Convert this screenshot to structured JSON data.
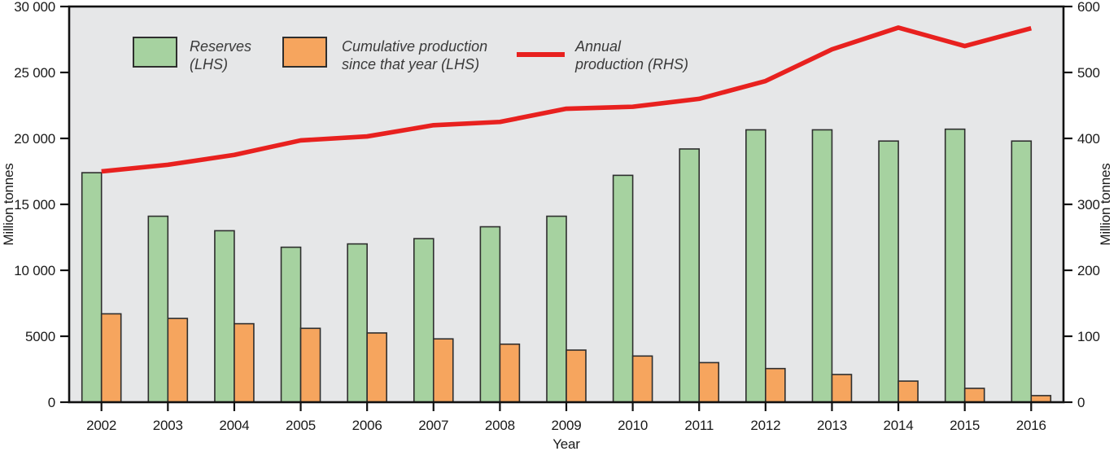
{
  "chart_data": {
    "type": "bar+line",
    "x_label": "Year",
    "y_left_label": "Million tonnes",
    "y_right_label": "Million tonnes",
    "y_left_range": [
      0,
      30000
    ],
    "y_left_tick_values": [
      0,
      5000,
      10000,
      15000,
      20000,
      25000,
      30000
    ],
    "y_left_ticks": [
      "0",
      "5000",
      "10 000",
      "15 000",
      "20 000",
      "25 000",
      "30 000"
    ],
    "y_right_range": [
      0,
      600
    ],
    "y_right_tick_values": [
      0,
      100,
      200,
      300,
      400,
      500,
      600
    ],
    "y_right_ticks": [
      "0",
      "100",
      "200",
      "300",
      "400",
      "500",
      "600"
    ],
    "categories": [
      "2002",
      "2003",
      "2004",
      "2005",
      "2006",
      "2007",
      "2008",
      "2009",
      "2010",
      "2011",
      "2012",
      "2013",
      "2014",
      "2015",
      "2016"
    ],
    "series": [
      {
        "name": "Reserves (LHS)",
        "type": "bar",
        "axis": "left",
        "values": [
          17400,
          14100,
          13000,
          11750,
          12000,
          12400,
          13300,
          14100,
          17200,
          19200,
          20650,
          20650,
          19800,
          20700,
          19800
        ]
      },
      {
        "name": "Cumulative production since that year (LHS)",
        "type": "bar",
        "axis": "left",
        "values": [
          6700,
          6350,
          5950,
          5600,
          5250,
          4800,
          4400,
          3950,
          3500,
          3000,
          2550,
          2100,
          1600,
          1050,
          500
        ]
      },
      {
        "name": "Annual production (RHS)",
        "type": "line",
        "axis": "right",
        "values": [
          350,
          360,
          375,
          397,
          403,
          420,
          425,
          445,
          448,
          460,
          487,
          535,
          568,
          540,
          567
        ]
      }
    ],
    "legend": [
      {
        "line1": "Reserves",
        "line2": "(LHS)",
        "swatch": "green-box"
      },
      {
        "line1": "Cumulative production",
        "line2": "since that year (LHS)",
        "swatch": "orange-box"
      },
      {
        "line1": "Annual",
        "line2": "production (RHS)",
        "swatch": "red-line"
      }
    ],
    "colors": {
      "reserves_fill": "#a6d2a0",
      "cumulative_fill": "#f6a55e",
      "annual_line": "#e8211f",
      "plot_background": "#e6e7e8",
      "bar_border": "#2e2e2e",
      "axis": "#111111"
    },
    "legend_position": "top-left-inside",
    "grid": false
  }
}
